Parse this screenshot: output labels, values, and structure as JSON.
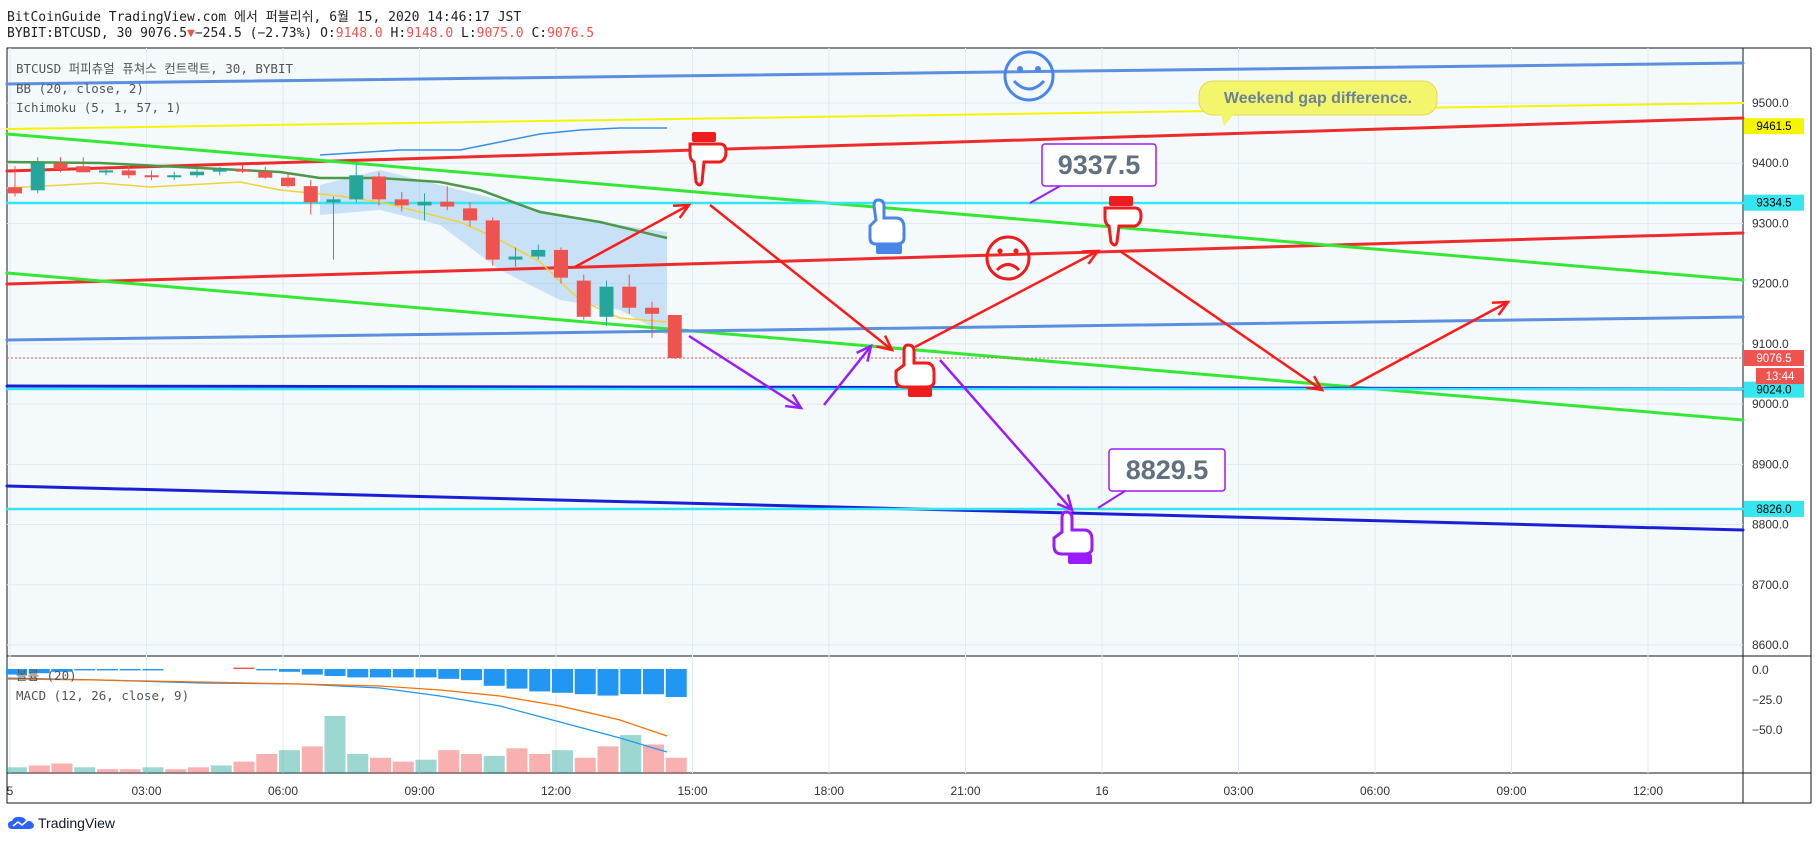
{
  "header": {
    "line1": "BitCoinGuide TradingView.com 에서 퍼블리쉬, 6월 15, 2020 14:46:17 JST",
    "symbol": "BYBIT:BTCUSD, 30",
    "last": "9076.5",
    "change": "−254.5 (−2.73%)",
    "o_label": "O:",
    "o": "9148.0",
    "h_label": "H:",
    "h": "9148.0",
    "l_label": "L:",
    "l": "9075.0",
    "c_label": "C:",
    "c": "9076.5"
  },
  "legend": {
    "title": "BTCUSD 퍼피츄얼 퓨쳐스 컨트랙트, 30, BYBIT",
    "bb": "BB (20, close, 2)",
    "ichimoku": "Ichimoku (5, 1, 57, 1)",
    "volume": "볼륨 (20)",
    "macd": "MACD (12, 26, close, 9)"
  },
  "footer": {
    "brand": "TradingView"
  },
  "colors": {
    "up": "#26a69a",
    "down": "#ef5350",
    "red_arrow": "#ff1a1a",
    "purple_arrow": "#9b1bff",
    "green_line": "#33e833",
    "blue_line": "#5b8fe0",
    "dark_blue": "#1a1fd6",
    "cyan": "#33e6f0",
    "yellow": "#f5f500"
  },
  "chart_data": {
    "type": "candlestick",
    "ylim": [
      8580,
      9580
    ],
    "y_ticks": [
      "9500.0",
      "9400.0",
      "9300.0",
      "9200.0",
      "9100.0",
      "9000.0",
      "8900.0",
      "8800.0",
      "8700.0",
      "8600.0"
    ],
    "x_ticks": [
      "5",
      "03:00",
      "06:00",
      "09:00",
      "12:00",
      "15:00",
      "18:00",
      "21:00",
      "16",
      "03:00",
      "06:00",
      "09:00",
      "12:00"
    ],
    "candles": [
      {
        "t": 0.0,
        "o": 9360,
        "h": 9395,
        "l": 9345,
        "c": 9350
      },
      {
        "t": 0.5,
        "o": 9355,
        "h": 9410,
        "l": 9350,
        "c": 9400
      },
      {
        "t": 1.0,
        "o": 9400,
        "h": 9410,
        "l": 9385,
        "c": 9390
      },
      {
        "t": 1.5,
        "o": 9395,
        "h": 9410,
        "l": 9385,
        "c": 9385
      },
      {
        "t": 2.0,
        "o": 9385,
        "h": 9392,
        "l": 9380,
        "c": 9388
      },
      {
        "t": 2.5,
        "o": 9388,
        "h": 9395,
        "l": 9375,
        "c": 9380
      },
      {
        "t": 3.0,
        "o": 9380,
        "h": 9388,
        "l": 9372,
        "c": 9378
      },
      {
        "t": 3.5,
        "o": 9378,
        "h": 9386,
        "l": 9372,
        "c": 9380
      },
      {
        "t": 4.0,
        "o": 9380,
        "h": 9390,
        "l": 9376,
        "c": 9386
      },
      {
        "t": 4.5,
        "o": 9386,
        "h": 9394,
        "l": 9380,
        "c": 9390
      },
      {
        "t": 5.0,
        "o": 9390,
        "h": 9398,
        "l": 9384,
        "c": 9386
      },
      {
        "t": 5.5,
        "o": 9386,
        "h": 9394,
        "l": 9374,
        "c": 9376
      },
      {
        "t": 6.0,
        "o": 9376,
        "h": 9385,
        "l": 9360,
        "c": 9362
      },
      {
        "t": 6.5,
        "o": 9362,
        "h": 9372,
        "l": 9315,
        "c": 9335
      },
      {
        "t": 7.0,
        "o": 9335,
        "h": 9345,
        "l": 9240,
        "c": 9340
      },
      {
        "t": 7.5,
        "o": 9340,
        "h": 9400,
        "l": 9335,
        "c": 9380
      },
      {
        "t": 8.0,
        "o": 9378,
        "h": 9385,
        "l": 9330,
        "c": 9340
      },
      {
        "t": 8.5,
        "o": 9340,
        "h": 9352,
        "l": 9320,
        "c": 9330
      },
      {
        "t": 9.0,
        "o": 9330,
        "h": 9350,
        "l": 9305,
        "c": 9336
      },
      {
        "t": 9.5,
        "o": 9336,
        "h": 9362,
        "l": 9322,
        "c": 9328
      },
      {
        "t": 10.0,
        "o": 9325,
        "h": 9335,
        "l": 9295,
        "c": 9305
      },
      {
        "t": 10.5,
        "o": 9305,
        "h": 9310,
        "l": 9230,
        "c": 9240
      },
      {
        "t": 11.0,
        "o": 9240,
        "h": 9260,
        "l": 9228,
        "c": 9245
      },
      {
        "t": 11.5,
        "o": 9245,
        "h": 9265,
        "l": 9240,
        "c": 9256
      },
      {
        "t": 12.0,
        "o": 9256,
        "h": 9260,
        "l": 9200,
        "c": 9210
      },
      {
        "t": 12.5,
        "o": 9205,
        "h": 9215,
        "l": 9140,
        "c": 9145
      },
      {
        "t": 13.0,
        "o": 9145,
        "h": 9205,
        "l": 9130,
        "c": 9195
      },
      {
        "t": 13.5,
        "o": 9195,
        "h": 9215,
        "l": 9150,
        "c": 9160
      },
      {
        "t": 14.0,
        "o": 9160,
        "h": 9170,
        "l": 9110,
        "c": 9150
      },
      {
        "t": 14.5,
        "o": 9148,
        "h": 9148,
        "l": 9075,
        "c": 9076.5
      }
    ],
    "price_labels": [
      {
        "value": 9461.5,
        "text": "9461.5",
        "bg": "#f5f500",
        "fg": "#000000"
      },
      {
        "value": 9334.5,
        "text": "9334.5",
        "bg": "#33e6f0",
        "fg": "#000000"
      },
      {
        "value": 9076.5,
        "text": "9076.5",
        "bg": "#ef5350",
        "fg": "#ffffff"
      },
      {
        "value": 9024.0,
        "text": "9024.0",
        "bg": "#33e6f0",
        "fg": "#000000"
      },
      {
        "value": 8826.0,
        "text": "8826.0",
        "bg": "#33e6f0",
        "fg": "#000000"
      }
    ],
    "countdown": "13:44",
    "annotations": {
      "callout_top": "9337.5",
      "callout_bottom": "8829.5",
      "bubble": "Weekend gap difference."
    },
    "volume_bars": [
      3,
      4,
      5,
      3,
      2,
      2,
      3,
      2,
      3,
      4,
      6,
      10,
      12,
      14,
      30,
      10,
      8,
      6,
      7,
      12,
      10,
      9,
      13,
      10,
      12,
      8,
      14,
      20,
      15,
      8
    ],
    "macd_hist": [
      -4,
      -3,
      -2,
      -1,
      -1,
      -1,
      -1,
      0,
      0,
      0,
      1,
      -1,
      -2,
      -4,
      -5,
      -6,
      -6,
      -6,
      -6,
      -7,
      -8,
      -12,
      -14,
      -16,
      -17,
      -18,
      -19,
      -18,
      -18,
      -20
    ],
    "macd_scale": [
      "0.0",
      "−25.0",
      "−50.0"
    ]
  }
}
